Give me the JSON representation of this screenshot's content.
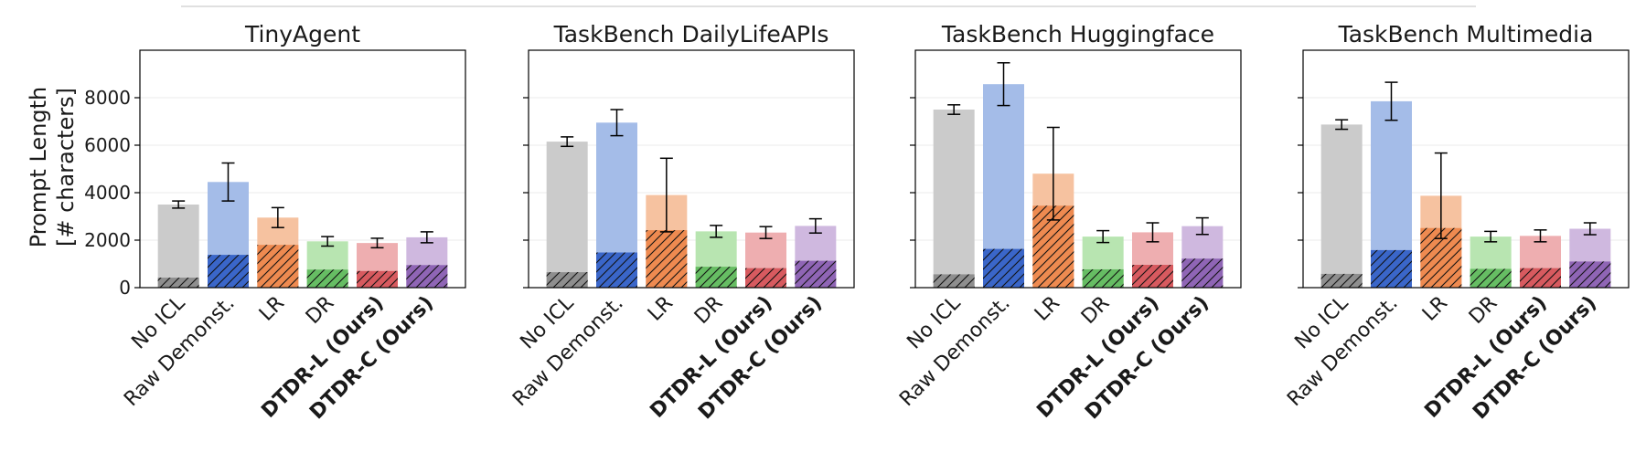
{
  "chart_data": {
    "type": "bar",
    "style": "stacked overlay: light bar = total prompt length, dark hatched bar = instruction-only portion, with error bars on totals",
    "ylabel": [
      "Prompt Length",
      "[# characters]"
    ],
    "ylim": [
      0,
      10000
    ],
    "yticks": [
      0,
      2000,
      4000,
      6000,
      8000
    ],
    "categories": [
      "No ICL",
      "Raw Demonst.",
      "LR",
      "DR",
      "DTDR-L (Ours)",
      "DTDR-C (Ours)"
    ],
    "bold_categories": [
      "DTDR-L (Ours)",
      "DTDR-C (Ours)"
    ],
    "colors": {
      "light": [
        "#cbcbcb",
        "#a4bce8",
        "#f6c2a0",
        "#b8e5b1",
        "#eeaeb0",
        "#cfb8df"
      ],
      "dark": [
        "#8e8e8e",
        "#3a66c9",
        "#ee8a50",
        "#66bd63",
        "#d75a5f",
        "#8f65b5"
      ]
    },
    "panels": [
      {
        "title": "TinyAgent",
        "totals": [
          3500,
          4450,
          2950,
          1950,
          1880,
          2120
        ],
        "errors": [
          150,
          800,
          420,
          200,
          200,
          230
        ],
        "hatched": [
          420,
          1380,
          1800,
          760,
          700,
          950
        ]
      },
      {
        "title": "TaskBench DailyLifeAPIs",
        "totals": [
          6150,
          6950,
          3900,
          2370,
          2320,
          2600
        ],
        "errors": [
          200,
          550,
          1550,
          250,
          250,
          300
        ],
        "hatched": [
          650,
          1480,
          2420,
          880,
          820,
          1130
        ]
      },
      {
        "title": "TaskBench Huggingface",
        "totals": [
          7500,
          8570,
          4800,
          2150,
          2330,
          2590
        ],
        "errors": [
          200,
          900,
          1950,
          250,
          400,
          350
        ],
        "hatched": [
          560,
          1630,
          3450,
          770,
          960,
          1220
        ]
      },
      {
        "title": "TaskBench Multimedia",
        "totals": [
          6870,
          7850,
          3870,
          2150,
          2180,
          2480
        ],
        "errors": [
          200,
          800,
          1800,
          220,
          250,
          250
        ],
        "hatched": [
          580,
          1580,
          2510,
          790,
          820,
          1100
        ]
      }
    ]
  }
}
